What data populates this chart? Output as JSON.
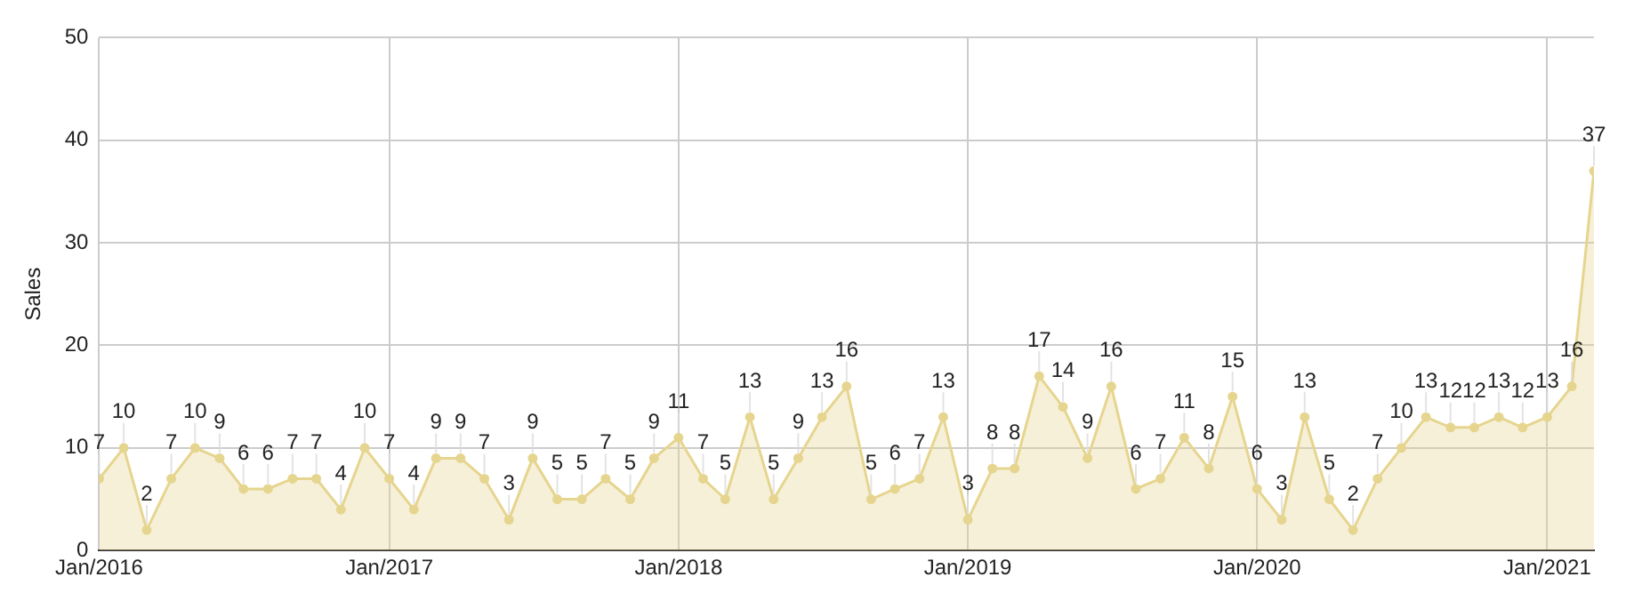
{
  "chart_data": {
    "type": "area",
    "ylabel": "Sales",
    "x": [
      "2016-01",
      "2016-02",
      "2016-03",
      "2016-04",
      "2016-05",
      "2016-06",
      "2016-07",
      "2016-08",
      "2016-09",
      "2016-10",
      "2016-11",
      "2016-12",
      "2017-01",
      "2017-02",
      "2017-03",
      "2017-04",
      "2017-05",
      "2017-06",
      "2017-07",
      "2017-08",
      "2017-09",
      "2017-10",
      "2017-11",
      "2017-12",
      "2018-01",
      "2018-02",
      "2018-03",
      "2018-04",
      "2018-05",
      "2018-06",
      "2018-07",
      "2018-08",
      "2018-09",
      "2018-10",
      "2018-11",
      "2018-12",
      "2019-01",
      "2019-02",
      "2019-03",
      "2019-04",
      "2019-05",
      "2019-06",
      "2019-07",
      "2019-08",
      "2019-09",
      "2019-10",
      "2019-11",
      "2019-12",
      "2020-01",
      "2020-02",
      "2020-03",
      "2020-04",
      "2020-05",
      "2020-06",
      "2020-07",
      "2020-08",
      "2020-09",
      "2020-10",
      "2020-11",
      "2020-12",
      "2021-01",
      "2021-02",
      "2021-03"
    ],
    "series": [
      {
        "color": "#e6d58f",
        "values": [
          7,
          10,
          2,
          7,
          10,
          9,
          6,
          6,
          7,
          7,
          4,
          10,
          7,
          4,
          9,
          9,
          7,
          3,
          9,
          5,
          5,
          7,
          5,
          9,
          11,
          7,
          5,
          13,
          5,
          9,
          13,
          16,
          5,
          6,
          7,
          13,
          3,
          8,
          8,
          17,
          14,
          9,
          16,
          6,
          7,
          11,
          8,
          15,
          6,
          3,
          13,
          5,
          2,
          7,
          10,
          13,
          12,
          12,
          13,
          12,
          13,
          16,
          37
        ]
      }
    ],
    "xlim": [
      "2016-01",
      "2021-03"
    ],
    "xticks": [
      {
        "value": "2016-01",
        "label": "Jan/2016"
      },
      {
        "value": "2017-01",
        "label": "Jan/2017"
      },
      {
        "value": "2018-01",
        "label": "Jan/2018"
      },
      {
        "value": "2019-01",
        "label": "Jan/2019"
      },
      {
        "value": "2020-01",
        "label": "Jan/2020"
      },
      {
        "value": "2021-01",
        "label": "Jan/2021"
      }
    ],
    "ylim": [
      0,
      50
    ],
    "yticks": [
      0,
      10,
      20,
      30,
      40,
      50
    ],
    "grid": true,
    "marker": "circle",
    "data_labels": true
  }
}
